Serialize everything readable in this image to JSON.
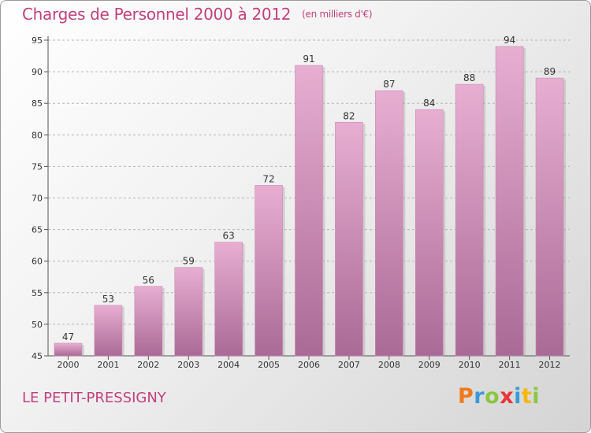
{
  "header": {
    "title": "Charges de Personnel 2000 à 2012",
    "unit": "(en milliers d'€)"
  },
  "footer": {
    "commune": "LE PETIT-PRESSIGNY",
    "brand": "Proxiti"
  },
  "colors": {
    "title": "#c2407e",
    "bar_top": "#e8aed2",
    "bar_bottom": "#aa6a96"
  },
  "chart_data": {
    "type": "bar",
    "title": "Charges de Personnel 2000 à 2012",
    "subtitle": "(en milliers d'€)",
    "categories": [
      "2000",
      "2001",
      "2002",
      "2003",
      "2004",
      "2005",
      "2006",
      "2007",
      "2008",
      "2009",
      "2010",
      "2011",
      "2012"
    ],
    "values": [
      47,
      53,
      56,
      59,
      63,
      72,
      91,
      82,
      87,
      84,
      88,
      94,
      89
    ],
    "ylim": [
      45,
      95
    ],
    "yticks": [
      45,
      50,
      55,
      60,
      65,
      70,
      75,
      80,
      85,
      90,
      95
    ],
    "grid": "horizontal dashed",
    "xlabel": "",
    "ylabel": ""
  }
}
